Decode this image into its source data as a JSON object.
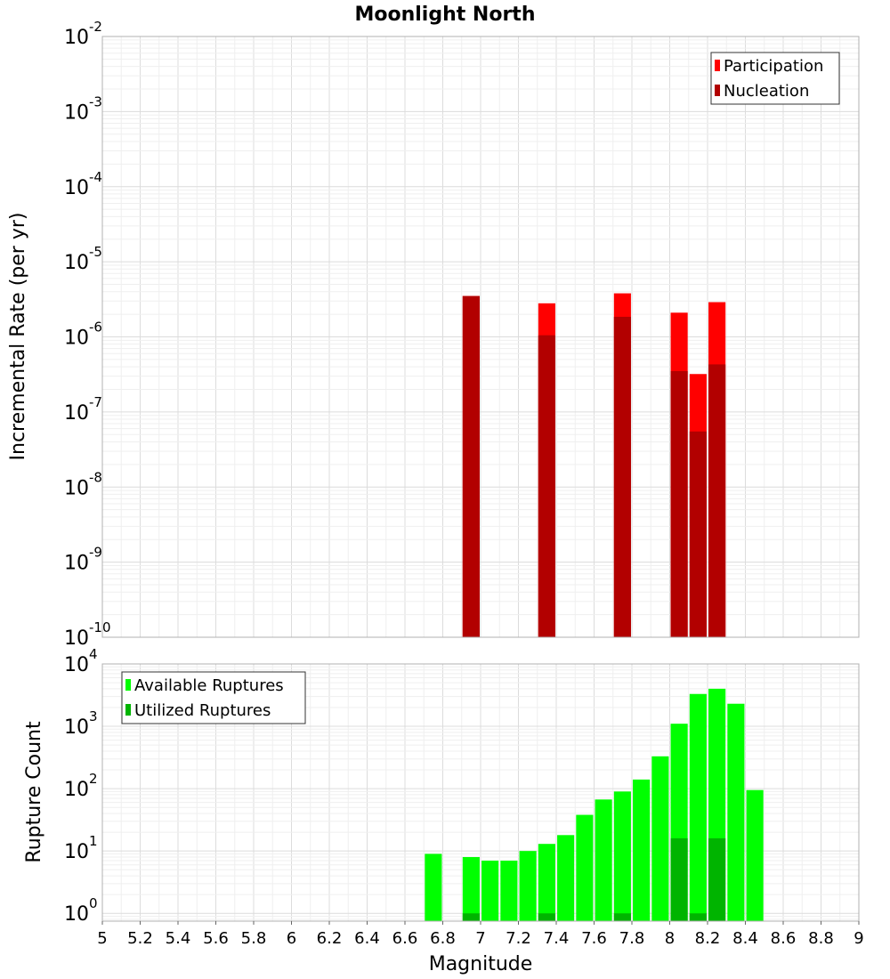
{
  "title": "Moonlight North",
  "chart_data": [
    {
      "type": "bar",
      "ylabel": "Incremental Rate (per yr)",
      "yscale": "log",
      "ylim": [
        1e-10,
        0.01
      ],
      "xlim": [
        5,
        9
      ],
      "bar_width": 0.09,
      "yticks": [
        {
          "base": "10",
          "exp": "-10",
          "value": 1e-10
        },
        {
          "base": "10",
          "exp": "-9",
          "value": 1e-09
        },
        {
          "base": "10",
          "exp": "-8",
          "value": 1e-08
        },
        {
          "base": "10",
          "exp": "-7",
          "value": 1e-07
        },
        {
          "base": "10",
          "exp": "-6",
          "value": 1e-06
        },
        {
          "base": "10",
          "exp": "-5",
          "value": 1e-05
        },
        {
          "base": "10",
          "exp": "-4",
          "value": 0.0001
        },
        {
          "base": "10",
          "exp": "-3",
          "value": 0.001
        },
        {
          "base": "10",
          "exp": "-2",
          "value": 0.01
        }
      ],
      "legend_position": "top-right",
      "series": [
        {
          "name": "Participation",
          "color": "#ff0000",
          "x": [
            6.95,
            7.35,
            7.75,
            8.05,
            8.15,
            8.25
          ],
          "values": [
            3.5e-06,
            2.8e-06,
            3.8e-06,
            2.1e-06,
            3.2e-07,
            2.9e-06
          ]
        },
        {
          "name": "Nucleation",
          "color": "#b20000",
          "x": [
            6.95,
            7.35,
            7.75,
            8.05,
            8.15,
            8.25
          ],
          "values": [
            3.5e-06,
            1.05e-06,
            1.85e-06,
            3.5e-07,
            5.5e-08,
            4.3e-07
          ]
        }
      ]
    },
    {
      "type": "bar",
      "xlabel": "Magnitude",
      "ylabel": "Rupture Count",
      "yscale": "log",
      "ylim": [
        0.75,
        10000
      ],
      "xlim": [
        5,
        9
      ],
      "bar_width": 0.09,
      "yticks": [
        {
          "base": "10",
          "exp": "0",
          "value": 1
        },
        {
          "base": "10",
          "exp": "1",
          "value": 10
        },
        {
          "base": "10",
          "exp": "2",
          "value": 100
        },
        {
          "base": "10",
          "exp": "3",
          "value": 1000
        },
        {
          "base": "10",
          "exp": "4",
          "value": 10000
        }
      ],
      "xticks": [
        "5",
        "5.2",
        "5.4",
        "5.6",
        "5.8",
        "6",
        "6.2",
        "6.4",
        "6.6",
        "6.8",
        "7",
        "7.2",
        "7.4",
        "7.6",
        "7.8",
        "8",
        "8.2",
        "8.4",
        "8.6",
        "8.8",
        "9"
      ],
      "legend_position": "top-left",
      "series": [
        {
          "name": "Available Ruptures",
          "color": "#00ff00",
          "x": [
            6.75,
            6.95,
            7.05,
            7.15,
            7.25,
            7.35,
            7.45,
            7.55,
            7.65,
            7.75,
            7.85,
            7.95,
            8.05,
            8.15,
            8.25,
            8.35,
            8.45
          ],
          "values": [
            9,
            8,
            7,
            7,
            10,
            13,
            18,
            38,
            67,
            90,
            140,
            330,
            1100,
            3300,
            4000,
            2300,
            95
          ]
        },
        {
          "name": "Utilized Ruptures",
          "color": "#00b400",
          "x": [
            6.95,
            7.35,
            7.75,
            8.05,
            8.15,
            8.25
          ],
          "values": [
            1,
            1,
            1,
            16,
            1,
            16
          ]
        }
      ]
    }
  ]
}
